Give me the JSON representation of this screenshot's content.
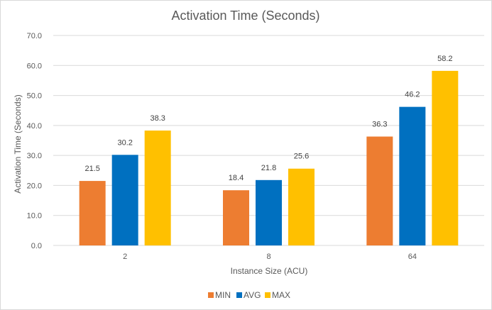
{
  "chart_data": {
    "type": "bar",
    "title": "Activation Time (Seconds)",
    "xlabel": "Instance Size (ACU)",
    "ylabel": "Activation Time (Seconds)",
    "categories": [
      "2",
      "8",
      "64"
    ],
    "series": [
      {
        "name": "MIN",
        "color": "#ed7d31",
        "values": [
          21.5,
          18.4,
          36.3
        ]
      },
      {
        "name": "AVG",
        "color": "#0070c0",
        "values": [
          30.2,
          21.8,
          46.2
        ]
      },
      {
        "name": "MAX",
        "color": "#ffc000",
        "values": [
          38.3,
          25.6,
          58.2
        ]
      }
    ],
    "ylim": [
      0,
      70
    ],
    "yticks": [
      "0.0",
      "10.0",
      "20.0",
      "30.0",
      "40.0",
      "50.0",
      "60.0",
      "70.0"
    ],
    "grid": true,
    "legend_position": "bottom"
  }
}
